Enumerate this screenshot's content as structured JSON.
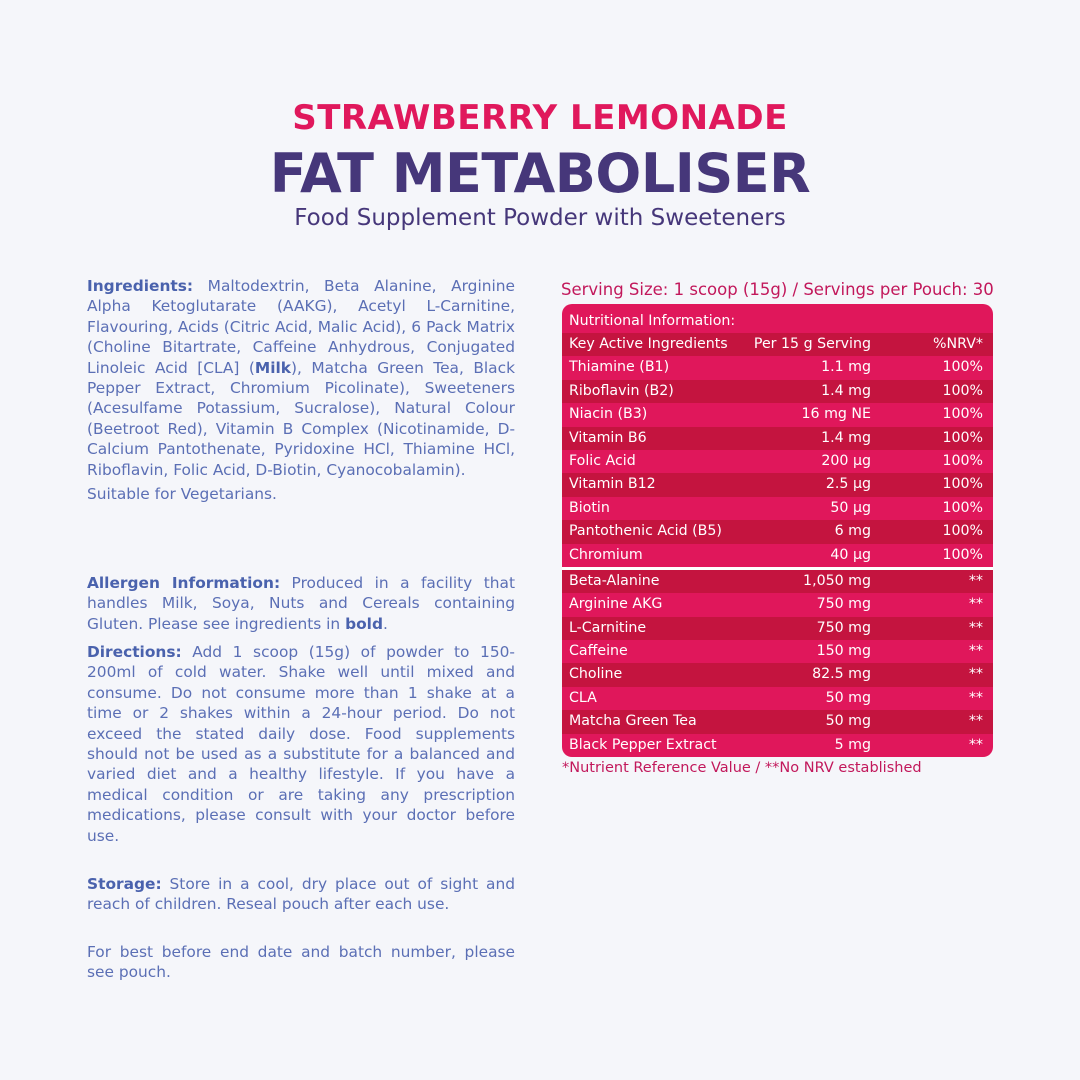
{
  "header": {
    "flavour": "STRAWBERRY LEMONADE",
    "product": "FAT METABOLISER",
    "subtitle": "Food Supplement Powder with Sweeteners"
  },
  "colors": {
    "pink": "#e0185c",
    "purple": "#46377a",
    "text_blue": "#5b6fb5",
    "row_light": "#e0175b",
    "row_dark": "#c4143f"
  },
  "ingredients": {
    "label": "Ingredients:",
    "text_a": " Maltodextrin, Beta Alanine, Arginine Alpha Ketoglutarate (AAKG), Acetyl L-Carnitine, Flavouring, Acids (Citric Acid, Malic Acid), 6 Pack Matrix (Choline Bitartrate, Caffeine Anhydrous, Conjugated Linoleic Acid [CLA] (",
    "bold": "Milk",
    "text_b": "), Matcha Green Tea, Black Pepper Extract, Chromium Picolinate), Sweeteners (Acesulfame Potassium, Sucralose), Natural Colour (Beetroot Red), Vitamin B Complex (Nicotinamide, D-Calcium Pantothenate, Pyridoxine HCl, Thiamine HCl, Riboflavin, Folic Acid, D-Biotin, Cyanocobalamin).",
    "vegetarian": "Suitable for Vegetarians."
  },
  "allergen": {
    "label": "Allergen Information:",
    "text_a": " Produced in a facility that handles Milk, Soya, Nuts and Cereals containing Gluten. Please see ingredients in ",
    "bold": "bold",
    "text_b": "."
  },
  "directions": {
    "label": "Directions:",
    "text": " Add 1 scoop (15g) of powder to 150-200ml of cold water. Shake well until mixed and consume. Do not consume more than 1 shake at a time or 2 shakes within a 24-hour period. Do not exceed the stated daily dose. Food supplements should not be used as a substitute for a balanced and varied diet and a healthy lifestyle. If you have a medical condition or are taking any prescription medications, please consult with your doctor before use."
  },
  "storage": {
    "label": "Storage:",
    "text": " Store in a cool, dry place out of sight and reach of children. Reseal pouch after each use."
  },
  "best_before": "For best before end date and batch number, please see pouch.",
  "nutrition": {
    "serving": "Serving Size: 1 scoop (15g) / Servings per Pouch: 30",
    "title": "Nutritional Information:",
    "columns": [
      "Key Active Ingredients",
      "Per 15 g Serving",
      "%NRV*"
    ],
    "vitamins": [
      [
        "Thiamine (B1)",
        "1.1 mg",
        "100%"
      ],
      [
        "Riboflavin (B2)",
        "1.4 mg",
        "100%"
      ],
      [
        "Niacin (B3)",
        "16 mg NE",
        "100%"
      ],
      [
        "Vitamin B6",
        "1.4 mg",
        "100%"
      ],
      [
        "Folic Acid",
        "200 µg",
        "100%"
      ],
      [
        "Vitamin B12",
        "2.5 µg",
        "100%"
      ],
      [
        "Biotin",
        "50 µg",
        "100%"
      ],
      [
        "Pantothenic Acid (B5)",
        "6 mg",
        "100%"
      ],
      [
        "Chromium",
        "40 µg",
        "100%"
      ]
    ],
    "actives": [
      [
        "Beta-Alanine",
        "1,050 mg",
        "**"
      ],
      [
        "Arginine AKG",
        "750 mg",
        "**"
      ],
      [
        "L-Carnitine",
        "750 mg",
        "**"
      ],
      [
        "Caffeine",
        "150 mg",
        "**"
      ],
      [
        "Choline",
        "82.5 mg",
        "**"
      ],
      [
        "CLA",
        "50 mg",
        "**"
      ],
      [
        "Matcha Green Tea",
        "50 mg",
        "**"
      ],
      [
        "Black Pepper Extract",
        "5 mg",
        "**"
      ]
    ],
    "footnote": "*Nutrient Reference Value / **No NRV established"
  }
}
